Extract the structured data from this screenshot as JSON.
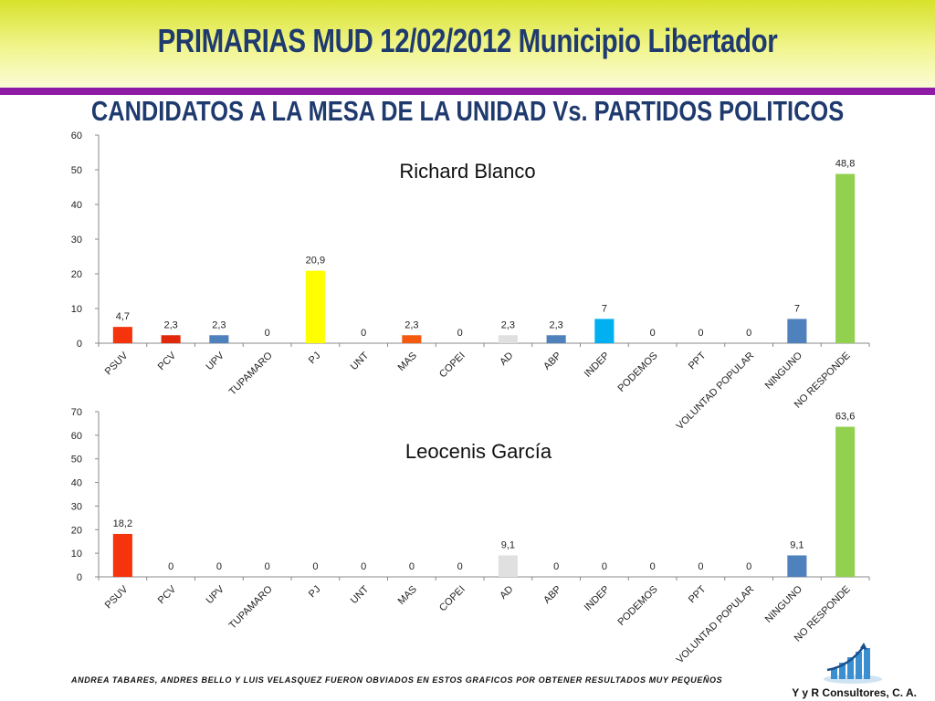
{
  "header": {
    "title": "PRIMARIAS MUD 12/02/2012  Municipio Libertador",
    "subtitle": "CANDIDATOS A LA MESA DE LA UNIDAD Vs. PARTIDOS POLITICOS"
  },
  "footer": {
    "note": "ANDREA TABARES, ANDRES BELLO Y LUIS VELASQUEZ FUERON OBVIADOS EN ESTOS GRAFICOS POR OBTENER RESULTADOS MUY PEQUEÑOS",
    "company": "Y y R Consultores, C. A."
  },
  "colors": {
    "header_top": "#d7e22a",
    "header_divider": "#8e1ba4",
    "title_text": "#1f3a6e"
  },
  "chart_data": [
    {
      "type": "bar",
      "title": "Richard Blanco",
      "categories": [
        "PSUV",
        "PCV",
        "UPV",
        "TUPAMARO",
        "PJ",
        "UNT",
        "MAS",
        "COPEI",
        "AD",
        "ABP",
        "INDEP",
        "PODEMOS",
        "PPT",
        "VOLUNTAD POPULAR",
        "NINGUNO",
        "NO RESPONDE"
      ],
      "values": [
        4.7,
        2.3,
        2.3,
        0,
        20.9,
        0,
        2.3,
        0,
        2.3,
        2.3,
        7,
        0,
        0,
        0,
        7,
        48.8
      ],
      "labels": [
        "4,7",
        "2,3",
        "2,3",
        "0",
        "20,9",
        "0",
        "2,3",
        "0",
        "2,3",
        "2,3",
        "7",
        "0",
        "0",
        "0",
        "7",
        "48,8"
      ],
      "colors": [
        "#f5330c",
        "#e0290b",
        "#4f81bd",
        "#4f81bd",
        "#ffff00",
        "#4f81bd",
        "#f5590e",
        "#4f81bd",
        "#e0e0e0",
        "#4f81bd",
        "#00b0f0",
        "#4f81bd",
        "#4f81bd",
        "#4f81bd",
        "#4f81bd",
        "#92d050"
      ],
      "ylim": [
        0,
        60
      ],
      "yticks": [
        0,
        10,
        20,
        30,
        40,
        50,
        60
      ],
      "grid": false
    },
    {
      "type": "bar",
      "title": "Leocenis García",
      "categories": [
        "PSUV",
        "PCV",
        "UPV",
        "TUPAMARO",
        "PJ",
        "UNT",
        "MAS",
        "COPEI",
        "AD",
        "ABP",
        "INDEP",
        "PODEMOS",
        "PPT",
        "VOLUNTAD POPULAR",
        "NINGUNO",
        "NO RESPONDE"
      ],
      "values": [
        18.2,
        0,
        0,
        0,
        0,
        0,
        0,
        0,
        9.1,
        0,
        0,
        0,
        0,
        0,
        9.1,
        63.6
      ],
      "labels": [
        "18,2",
        "0",
        "0",
        "0",
        "0",
        "0",
        "0",
        "0",
        "9,1",
        "0",
        "0",
        "0",
        "0",
        "0",
        "9,1",
        "63,6"
      ],
      "colors": [
        "#f5330c",
        "#e0290b",
        "#4f81bd",
        "#4f81bd",
        "#ffff00",
        "#4f81bd",
        "#f5590e",
        "#4f81bd",
        "#e0e0e0",
        "#4f81bd",
        "#00b0f0",
        "#4f81bd",
        "#4f81bd",
        "#4f81bd",
        "#4f81bd",
        "#92d050"
      ],
      "ylim": [
        0,
        70
      ],
      "yticks": [
        0,
        10,
        20,
        30,
        40,
        50,
        60,
        70
      ],
      "grid": false
    }
  ]
}
